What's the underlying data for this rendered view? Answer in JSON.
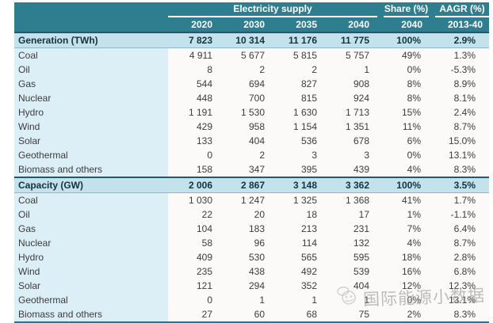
{
  "chart_data": {
    "type": "table",
    "header": {
      "group_electricity": "Electricity supply",
      "group_share": "Share (%)",
      "group_aagr": "AAGR (%)",
      "years": [
        "2020",
        "2030",
        "2035",
        "2040"
      ],
      "share_year": "2040",
      "aagr_period": "2013-40"
    },
    "sections": [
      {
        "title": "Generation (TWh)",
        "totals": [
          "7 823",
          "10 314",
          "11 176",
          "11 775",
          "100%",
          "2.9%"
        ],
        "rows": [
          {
            "label": "Coal",
            "values": [
              "4 911",
              "5 677",
              "5 815",
              "5 757",
              "49%",
              "1.3%"
            ]
          },
          {
            "label": "Oil",
            "values": [
              "8",
              "2",
              "2",
              "1",
              "0%",
              "-5.3%"
            ]
          },
          {
            "label": "Gas",
            "values": [
              "544",
              "694",
              "827",
              "908",
              "8%",
              "8.9%"
            ]
          },
          {
            "label": "Nuclear",
            "values": [
              "448",
              "700",
              "815",
              "924",
              "8%",
              "8.1%"
            ]
          },
          {
            "label": "Hydro",
            "values": [
              "1 191",
              "1 530",
              "1 630",
              "1 713",
              "15%",
              "2.4%"
            ]
          },
          {
            "label": "Wind",
            "values": [
              "429",
              "958",
              "1 154",
              "1 351",
              "11%",
              "8.7%"
            ]
          },
          {
            "label": "Solar",
            "values": [
              "133",
              "404",
              "536",
              "678",
              "6%",
              "15.0%"
            ]
          },
          {
            "label": "Geothermal",
            "values": [
              "0",
              "2",
              "3",
              "3",
              "0%",
              "13.1%"
            ]
          },
          {
            "label": "Biomass and others",
            "values": [
              "158",
              "347",
              "395",
              "439",
              "4%",
              "8.3%"
            ]
          }
        ]
      },
      {
        "title": "Capacity (GW)",
        "totals": [
          "2 006",
          "2 867",
          "3 148",
          "3 362",
          "100%",
          "3.5%"
        ],
        "rows": [
          {
            "label": "Coal",
            "values": [
              "1 030",
              "1 247",
              "1 325",
              "1 368",
              "41%",
              "1.7%"
            ]
          },
          {
            "label": "Oil",
            "values": [
              "22",
              "20",
              "18",
              "17",
              "1%",
              "-1.1%"
            ]
          },
          {
            "label": "Gas",
            "values": [
              "104",
              "183",
              "213",
              "231",
              "7%",
              "6.4%"
            ]
          },
          {
            "label": "Nuclear",
            "values": [
              "58",
              "96",
              "114",
              "132",
              "4%",
              "8.7%"
            ]
          },
          {
            "label": "Hydro",
            "values": [
              "409",
              "530",
              "565",
              "595",
              "18%",
              "2.8%"
            ]
          },
          {
            "label": "Wind",
            "values": [
              "235",
              "438",
              "492",
              "539",
              "16%",
              "6.8%"
            ]
          },
          {
            "label": "Solar",
            "values": [
              "121",
              "294",
              "352",
              "404",
              "12%",
              "12.3%"
            ]
          },
          {
            "label": "Geothermal",
            "values": [
              "0",
              "1",
              "1",
              "1",
              "0%",
              "13.1%"
            ]
          },
          {
            "label": "Biomass and others",
            "values": [
              "27",
              "60",
              "68",
              "75",
              "2%",
              "8.3%"
            ]
          }
        ]
      }
    ],
    "colors": {
      "header_teal": "#2f7e90",
      "section_row_bg": "#c3e2ec",
      "label_column_bg": "#dceff6",
      "data_cell_bg": "#fbfaf8",
      "dark_border": "#1c5a70"
    },
    "layout_hints": {
      "grid": "off",
      "label_column_left": true,
      "numeric_alignment": "right"
    }
  },
  "watermark": {
    "text": "国际能源小数据",
    "icon": "bee-logo-icon"
  }
}
